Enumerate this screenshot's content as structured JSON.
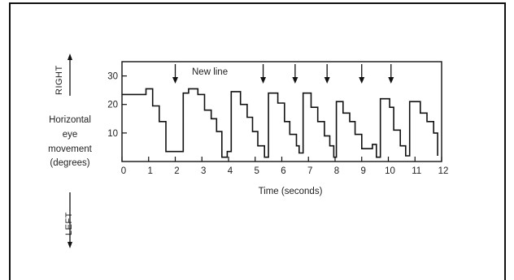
{
  "chart_data": {
    "type": "line",
    "xlabel": "Time (seconds)",
    "ylabel_lines": [
      "Horizontal",
      "eye",
      "movement",
      "(degrees)"
    ],
    "direction_labels": {
      "up": "RIGHT",
      "down": "LEFT"
    },
    "xlim": [
      0,
      12
    ],
    "ylim": [
      0,
      35
    ],
    "x_ticks": [
      0,
      1,
      2,
      3,
      4,
      5,
      6,
      7,
      8,
      9,
      10,
      11,
      12
    ],
    "y_ticks": [
      10,
      20,
      30
    ],
    "grid": false,
    "annotation": {
      "text": "New line",
      "x": 2.0
    },
    "new_line_markers_x": [
      2.0,
      5.3,
      6.5,
      7.7,
      9.0,
      10.1
    ],
    "series": [
      {
        "step_points": [
          [
            0.0,
            23.5
          ],
          [
            0.9,
            23.5
          ],
          [
            0.9,
            25.5
          ],
          [
            1.15,
            25.5
          ],
          [
            1.15,
            19.5
          ],
          [
            1.4,
            19.5
          ],
          [
            1.4,
            14.0
          ],
          [
            1.65,
            14.0
          ],
          [
            1.65,
            3.5
          ],
          [
            2.3,
            3.5
          ],
          [
            2.3,
            24.0
          ],
          [
            2.5,
            24.0
          ],
          [
            2.5,
            25.5
          ],
          [
            2.85,
            25.5
          ],
          [
            2.85,
            23.5
          ],
          [
            3.1,
            23.5
          ],
          [
            3.1,
            18.0
          ],
          [
            3.35,
            18.0
          ],
          [
            3.35,
            15.0
          ],
          [
            3.55,
            15.0
          ],
          [
            3.55,
            10.5
          ],
          [
            3.75,
            10.5
          ],
          [
            3.75,
            1.5
          ],
          [
            3.95,
            1.5
          ],
          [
            3.95,
            3.5
          ],
          [
            4.1,
            3.5
          ],
          [
            4.1,
            24.5
          ],
          [
            4.45,
            24.5
          ],
          [
            4.45,
            20.0
          ],
          [
            4.7,
            20.0
          ],
          [
            4.7,
            15.5
          ],
          [
            4.9,
            15.5
          ],
          [
            4.9,
            10.5
          ],
          [
            5.1,
            10.5
          ],
          [
            5.1,
            5.5
          ],
          [
            5.35,
            5.5
          ],
          [
            5.35,
            1.5
          ],
          [
            5.5,
            1.5
          ],
          [
            5.5,
            24.0
          ],
          [
            5.85,
            24.0
          ],
          [
            5.85,
            20.5
          ],
          [
            6.1,
            20.5
          ],
          [
            6.1,
            14.0
          ],
          [
            6.3,
            14.0
          ],
          [
            6.3,
            9.5
          ],
          [
            6.55,
            9.5
          ],
          [
            6.55,
            5.5
          ],
          [
            6.65,
            5.5
          ],
          [
            6.65,
            3.0
          ],
          [
            6.8,
            3.0
          ],
          [
            6.8,
            24.0
          ],
          [
            7.1,
            24.0
          ],
          [
            7.1,
            19.0
          ],
          [
            7.35,
            19.0
          ],
          [
            7.35,
            14.0
          ],
          [
            7.6,
            14.0
          ],
          [
            7.6,
            9.0
          ],
          [
            7.8,
            9.0
          ],
          [
            7.8,
            5.5
          ],
          [
            7.95,
            5.5
          ],
          [
            7.95,
            1.5
          ],
          [
            8.05,
            1.5
          ],
          [
            8.05,
            21.0
          ],
          [
            8.3,
            21.0
          ],
          [
            8.3,
            17.0
          ],
          [
            8.55,
            17.0
          ],
          [
            8.55,
            14.0
          ],
          [
            8.75,
            14.0
          ],
          [
            8.75,
            9.5
          ],
          [
            9.0,
            9.5
          ],
          [
            9.0,
            4.5
          ],
          [
            9.4,
            4.5
          ],
          [
            9.4,
            6.0
          ],
          [
            9.55,
            6.0
          ],
          [
            9.55,
            1.5
          ],
          [
            9.7,
            1.5
          ],
          [
            9.7,
            22.0
          ],
          [
            10.05,
            22.0
          ],
          [
            10.05,
            19.0
          ],
          [
            10.2,
            19.0
          ],
          [
            10.2,
            11.0
          ],
          [
            10.45,
            11.0
          ],
          [
            10.45,
            5.5
          ],
          [
            10.65,
            5.5
          ],
          [
            10.65,
            2.0
          ],
          [
            10.8,
            2.0
          ],
          [
            10.8,
            21.0
          ],
          [
            11.2,
            21.0
          ],
          [
            11.2,
            17.0
          ],
          [
            11.45,
            17.0
          ],
          [
            11.45,
            14.0
          ],
          [
            11.7,
            14.0
          ],
          [
            11.7,
            10.0
          ],
          [
            11.85,
            10.0
          ],
          [
            11.85,
            2.0
          ]
        ]
      }
    ]
  }
}
